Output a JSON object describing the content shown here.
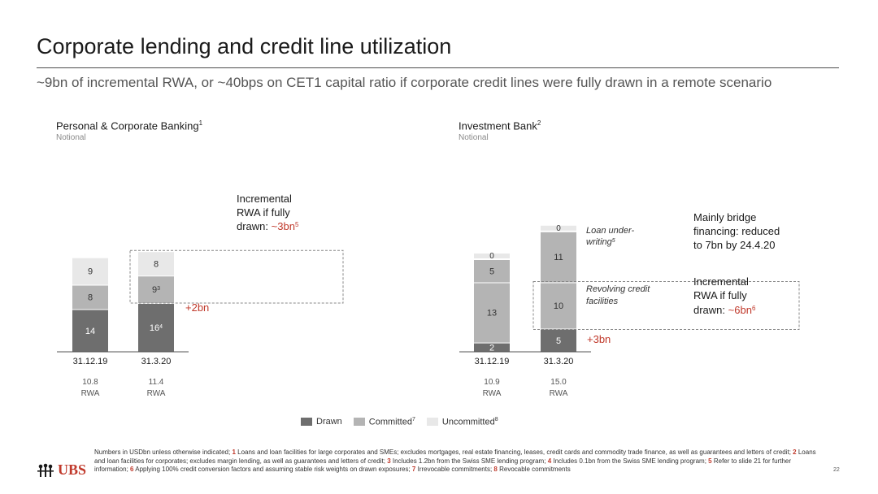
{
  "title": "Corporate lending and credit line utilization",
  "subtitle": "~9bn of incremental RWA, or ~40bps on CET1 capital ratio if corporate credit lines were fully drawn in a remote scenario",
  "colors": {
    "drawn": "#6e6e6e",
    "committed": "#b4b4b4",
    "uncommitted": "#e8e8e8",
    "accent": "#c0392b"
  },
  "legend": [
    {
      "key": "drawn",
      "label": "Drawn",
      "sup": ""
    },
    {
      "key": "committed",
      "label": "Committed",
      "sup": "7"
    },
    {
      "key": "uncommitted",
      "label": "Uncommitted",
      "sup": "8"
    }
  ],
  "chart_data": [
    {
      "type": "bar",
      "stacked": true,
      "title": "Personal & Corporate Banking",
      "title_sup": "1",
      "subtitle": "Notional",
      "categories": [
        "31.12.19",
        "31.3.20"
      ],
      "rwa": [
        "10.8",
        "11.4"
      ],
      "rwa_label": "RWA",
      "series": [
        {
          "name": "Drawn",
          "values": [
            14,
            16
          ],
          "labels": [
            "14",
            "16"
          ],
          "sups": [
            "",
            "4"
          ]
        },
        {
          "name": "Committed",
          "values": [
            8,
            9
          ],
          "labels": [
            "8",
            "9"
          ],
          "sups": [
            "",
            "3"
          ]
        },
        {
          "name": "Uncommitted",
          "values": [
            9,
            8
          ],
          "labels": [
            "9",
            "8"
          ],
          "sups": [
            "",
            ""
          ]
        }
      ],
      "annotations": {
        "delta": "+2bn",
        "box_text": [
          "Incremental",
          "RWA if fully",
          "drawn: "
        ],
        "box_highlight": "~3bn",
        "box_sup": "5"
      }
    },
    {
      "type": "bar",
      "stacked": true,
      "title": "Investment Bank",
      "title_sup": "2",
      "subtitle": "Notional",
      "categories": [
        "31.12.19",
        "31.3.20"
      ],
      "rwa": [
        "10.9",
        "15.0"
      ],
      "rwa_label": "RWA",
      "series": [
        {
          "name": "Drawn",
          "values": [
            2,
            5
          ],
          "labels": [
            "2",
            "5"
          ]
        },
        {
          "name": "Revolving credit facilities (committed)",
          "values": [
            13,
            10
          ],
          "labels": [
            "13",
            "10"
          ]
        },
        {
          "name": "Loan underwriting (committed)",
          "values": [
            5,
            11
          ],
          "labels": [
            "5",
            "11"
          ]
        },
        {
          "name": "Uncommitted",
          "values": [
            0,
            0
          ],
          "labels": [
            "0",
            "0"
          ]
        }
      ],
      "annotations": {
        "delta": "+3bn",
        "loan_label": [
          "Loan under-",
          "writing"
        ],
        "loan_sup": "5",
        "revolving_label": [
          "Revolving credit",
          "facilities"
        ],
        "bridge_text": [
          "Mainly bridge",
          "financing: reduced",
          "to 7bn by 24.4.20"
        ],
        "box_text": [
          "Incremental",
          "RWA if fully",
          "drawn: "
        ],
        "box_highlight": "~6bn",
        "box_sup": "6"
      }
    }
  ],
  "footnotes": [
    {
      "n": "",
      "t": "Numbers in USDbn unless otherwise indicated;"
    },
    {
      "n": "1",
      "t": "Loans and loan facilities for large corporates and SMEs; excludes mortgages, real estate financing, leases, credit cards and commodity trade finance, as well as guarantees and letters of credit;"
    },
    {
      "n": "2",
      "t": "Loans and loan facilities for corporates; excludes margin lending, as well as guarantees and letters of credit;"
    },
    {
      "n": "3",
      "t": "Includes 1.2bn from the Swiss SME lending program;"
    },
    {
      "n": "4",
      "t": "Includes 0.1bn from the Swiss SME lending program;"
    },
    {
      "n": "5",
      "t": "Refer to slide 21 for further information;"
    },
    {
      "n": "6",
      "t": "Applying 100% credit conversion factors and assuming stable risk weights on drawn exposures;"
    },
    {
      "n": "7",
      "t": "Irrevocable commitments;"
    },
    {
      "n": "8",
      "t": "Revocable commitments"
    }
  ],
  "logo": {
    "text": "UBS",
    "icon": "ubs-keys-icon"
  },
  "page_number": "22"
}
